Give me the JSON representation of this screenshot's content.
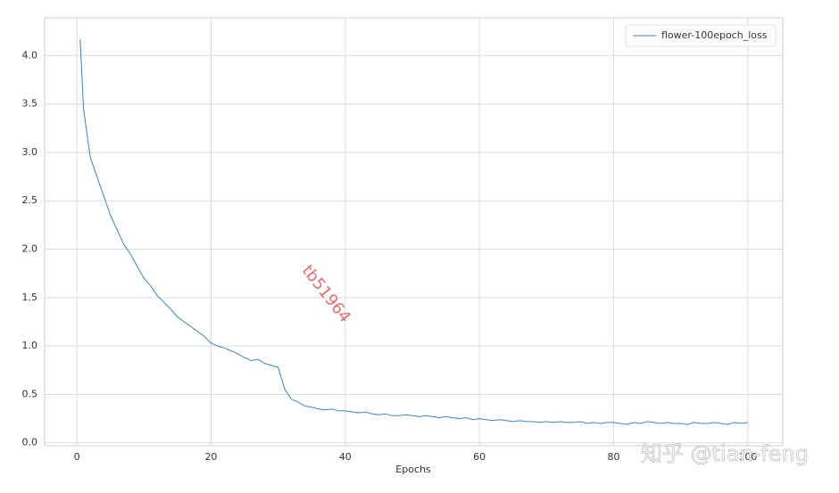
{
  "chart_data": {
    "type": "line",
    "xlabel": "Epochs",
    "x": [
      0.5,
      1,
      2,
      3,
      4,
      5,
      6,
      7,
      8,
      9,
      10,
      11,
      12,
      13,
      14,
      15,
      16,
      17,
      18,
      19,
      20,
      21,
      22,
      23,
      24,
      25,
      26,
      27,
      28,
      29,
      30,
      31,
      32,
      33,
      34,
      35,
      36,
      37,
      38,
      39,
      40,
      41,
      42,
      43,
      44,
      45,
      46,
      47,
      48,
      49,
      50,
      51,
      52,
      53,
      54,
      55,
      56,
      57,
      58,
      59,
      60,
      61,
      62,
      63,
      64,
      65,
      66,
      67,
      68,
      69,
      70,
      71,
      72,
      73,
      74,
      75,
      76,
      77,
      78,
      79,
      80,
      81,
      82,
      83,
      84,
      85,
      86,
      87,
      88,
      89,
      90,
      91,
      92,
      93,
      94,
      95,
      96,
      97,
      98,
      99,
      100
    ],
    "series": [
      {
        "name": "flower-100epoch_loss",
        "color": "#3d85c0",
        "values": [
          4.17,
          3.45,
          2.95,
          2.75,
          2.55,
          2.35,
          2.2,
          2.05,
          1.95,
          1.82,
          1.7,
          1.62,
          1.52,
          1.45,
          1.38,
          1.3,
          1.25,
          1.2,
          1.15,
          1.1,
          1.03,
          1.0,
          0.98,
          0.95,
          0.92,
          0.88,
          0.85,
          0.86,
          0.82,
          0.8,
          0.78,
          0.55,
          0.45,
          0.42,
          0.38,
          0.37,
          0.35,
          0.34,
          0.35,
          0.33,
          0.33,
          0.32,
          0.31,
          0.32,
          0.3,
          0.29,
          0.3,
          0.28,
          0.28,
          0.29,
          0.28,
          0.27,
          0.28,
          0.27,
          0.26,
          0.27,
          0.26,
          0.25,
          0.26,
          0.24,
          0.25,
          0.24,
          0.23,
          0.24,
          0.23,
          0.22,
          0.23,
          0.22,
          0.22,
          0.21,
          0.22,
          0.21,
          0.22,
          0.21,
          0.21,
          0.22,
          0.2,
          0.21,
          0.2,
          0.21,
          0.21,
          0.2,
          0.19,
          0.21,
          0.2,
          0.22,
          0.21,
          0.2,
          0.21,
          0.2,
          0.2,
          0.19,
          0.21,
          0.2,
          0.2,
          0.21,
          0.2,
          0.19,
          0.21,
          0.2,
          0.21
        ]
      }
    ],
    "xlim": [
      -4.8,
      105.2
    ],
    "ylim": [
      -0.03,
      4.39
    ],
    "xticks": [
      0,
      20,
      40,
      60,
      80,
      100
    ],
    "yticks": [
      {
        "value": 0,
        "label": "0.0"
      },
      0.5,
      {
        "value": 1,
        "label": "1.0"
      },
      1.5,
      {
        "value": 2,
        "label": "2.0"
      },
      2.5,
      {
        "value": 3,
        "label": "3.0"
      },
      3.5,
      {
        "value": 4,
        "label": "4.0"
      }
    ],
    "grid": true,
    "legend": "upper right",
    "watermarks": [
      "tb51964",
      "知乎 @tian-feng"
    ]
  }
}
